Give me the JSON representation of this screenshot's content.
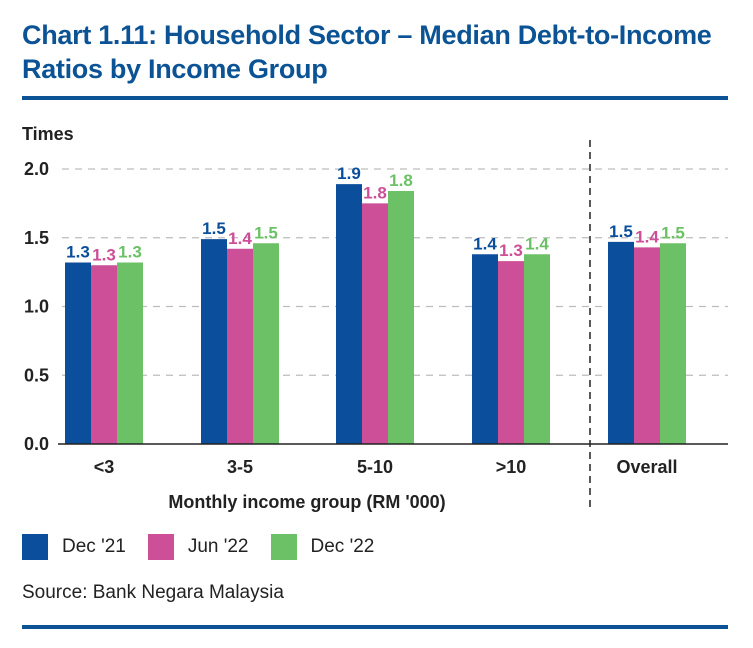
{
  "title": "Chart 1.11: Household Sector – Median Debt-to-Income Ratios by Income Group",
  "source": "Source: Bank Negara Malaysia",
  "chart_data": {
    "type": "bar",
    "title": "Chart 1.11: Household Sector – Median Debt-to-Income Ratios by Income Group",
    "ylabel": "Times",
    "xlabel": "Monthly income group (RM '000)",
    "ylim": [
      0,
      2.0
    ],
    "yticks": [
      0.0,
      0.5,
      1.0,
      1.5,
      2.0
    ],
    "ytick_labels": [
      "0.0",
      "0.5",
      "1.0",
      "1.5",
      "2.0"
    ],
    "grid": true,
    "grid_style": "dashed-horizontal",
    "legend_position": "bottom-left",
    "separator_before_category": "Overall",
    "categories": [
      "<3",
      "3-5",
      "5-10",
      ">10",
      "Overall"
    ],
    "series": [
      {
        "name": "Dec '21",
        "color": "#0b4f9c",
        "values": [
          1.32,
          1.49,
          1.89,
          1.38,
          1.47
        ],
        "labels": [
          "1.3",
          "1.5",
          "1.9",
          "1.4",
          "1.5"
        ]
      },
      {
        "name": "Jun '22",
        "color": "#cc4f98",
        "values": [
          1.3,
          1.42,
          1.75,
          1.33,
          1.43
        ],
        "labels": [
          "1.3",
          "1.4",
          "1.8",
          "1.3",
          "1.4"
        ]
      },
      {
        "name": "Dec '22",
        "color": "#6cc167",
        "values": [
          1.32,
          1.46,
          1.84,
          1.38,
          1.46
        ],
        "labels": [
          "1.3",
          "1.5",
          "1.8",
          "1.4",
          "1.5"
        ]
      }
    ]
  }
}
